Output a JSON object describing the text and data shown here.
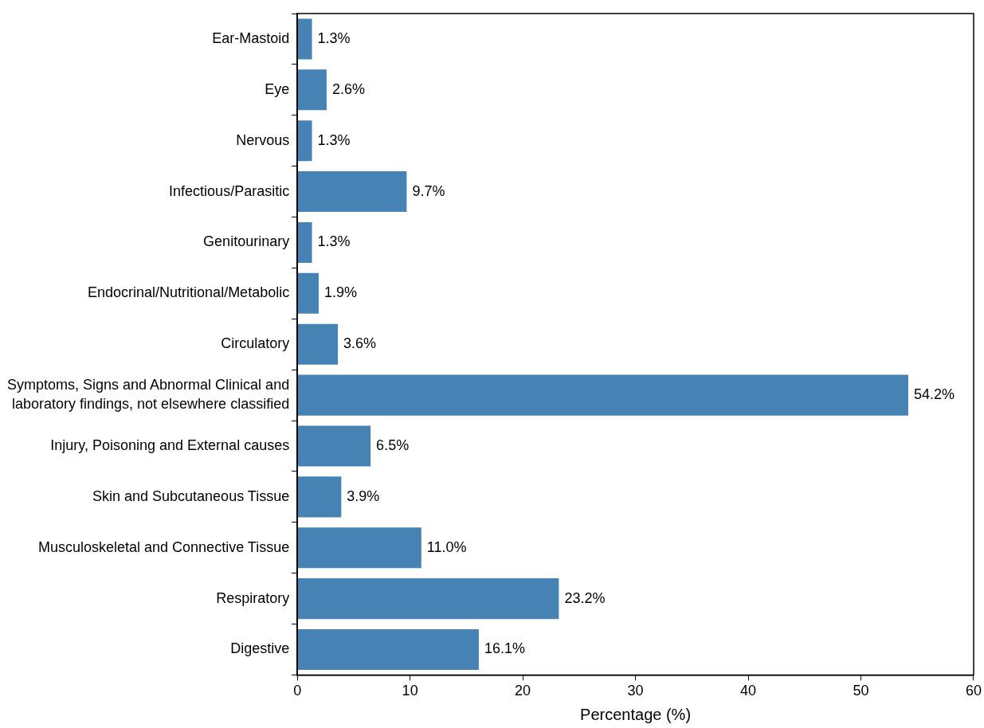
{
  "chart_data": {
    "type": "bar",
    "orientation": "horizontal",
    "xlabel": "Percentage (%)",
    "categories": [
      "Ear-Mastoid",
      "Eye",
      "Nervous",
      "Infectious/Parasitic",
      "Genitourinary",
      "Endocrinal/Nutritional/Metabolic",
      "Circulatory",
      "Symptoms, Signs and Abnormal Clinical and laboratory findings, not elsewhere classified",
      "Injury, Poisoning and External causes",
      "Skin and Subcutaneous Tissue",
      "Musculoskeletal and Connective Tissue",
      "Respiratory",
      "Digestive"
    ],
    "values": [
      1.3,
      2.6,
      1.3,
      9.7,
      1.3,
      1.9,
      3.6,
      54.2,
      6.5,
      3.9,
      11.0,
      23.2,
      16.1
    ],
    "value_labels": [
      "1.3%",
      "2.6%",
      "1.3%",
      "9.7%",
      "1.3%",
      "1.9%",
      "3.6%",
      "54.2%",
      "6.5%",
      "3.9%",
      "11.0%",
      "23.2%",
      "16.1%"
    ],
    "color": "#4682b4",
    "xlim": [
      0,
      60
    ],
    "xticks": [
      0,
      10,
      20,
      30,
      40,
      50,
      60
    ]
  }
}
